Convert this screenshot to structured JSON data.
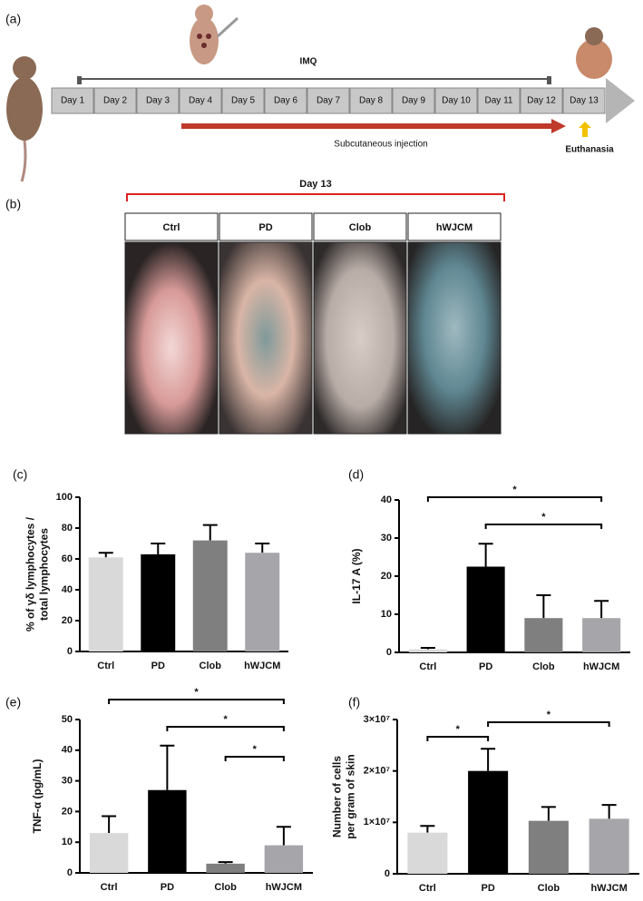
{
  "panels": {
    "a": "(a)",
    "b": "(b)",
    "c": "(c)",
    "d": "(d)",
    "e": "(e)",
    "f": "(f)"
  },
  "timeline": {
    "days": [
      "Day 1",
      "Day 2",
      "Day 3",
      "Day 4",
      "Day 5",
      "Day 6",
      "Day 7",
      "Day 8",
      "Day 9",
      "Day 10",
      "Day 11",
      "Day 12",
      "Day 13"
    ],
    "imq": "IMQ",
    "injection": "Subcutaneous injection",
    "euthanasia": "Euthanasia"
  },
  "photos": {
    "title": "Day 13",
    "groups": [
      "Ctrl",
      "PD",
      "Clob",
      "hWJCM"
    ]
  },
  "chart_data": [
    {
      "type": "bar",
      "y_label": [
        "% of γδ lymphocytes /",
        "total lymphocytes"
      ],
      "categories": [
        "Ctrl",
        "PD",
        "Clob",
        "hWJCM"
      ],
      "values": [
        61,
        63,
        72,
        64
      ],
      "errors": [
        3,
        7,
        10,
        6
      ],
      "colors": [
        "#d9d9d9",
        "#000000",
        "#7f7f7f",
        "#a6a6aa"
      ],
      "ylim": [
        0,
        100
      ],
      "yticks": [
        0,
        20,
        40,
        60,
        80,
        100
      ],
      "brackets": []
    },
    {
      "type": "bar",
      "y_label": "IL-17 A (%)",
      "categories": [
        "Ctrl",
        "PD",
        "Clob",
        "hWJCM"
      ],
      "values": [
        0.8,
        22.5,
        9,
        9
      ],
      "errors": [
        0.4,
        6,
        6,
        4.5
      ],
      "colors": [
        "#d9d9d9",
        "#000000",
        "#7f7f7f",
        "#a6a6aa"
      ],
      "ylim": [
        0,
        40
      ],
      "yticks": [
        0,
        10,
        20,
        30,
        40
      ],
      "brackets": [
        {
          "from": "Ctrl",
          "to": "hWJCM",
          "label": "*"
        },
        {
          "from": "PD",
          "to": "hWJCM",
          "label": "*"
        }
      ]
    },
    {
      "type": "bar",
      "y_label": "TNF-α (pg/mL)",
      "categories": [
        "Ctrl",
        "PD",
        "Clob",
        "hWJCM"
      ],
      "values": [
        13,
        27,
        3,
        9
      ],
      "errors": [
        5.5,
        14.5,
        0.5,
        6
      ],
      "colors": [
        "#d9d9d9",
        "#000000",
        "#7f7f7f",
        "#a6a6aa"
      ],
      "ylim": [
        0,
        50
      ],
      "yticks": [
        0,
        10,
        20,
        30,
        40,
        50
      ],
      "brackets": [
        {
          "from": "Ctrl",
          "to": "hWJCM",
          "label": "*"
        },
        {
          "from": "PD",
          "to": "hWJCM",
          "label": "*"
        },
        {
          "from": "Clob",
          "to": "hWJCM",
          "label": "*"
        }
      ]
    },
    {
      "type": "bar",
      "y_label": [
        "Number of cells",
        "per gram of skin"
      ],
      "categories": [
        "Ctrl",
        "PD",
        "Clob",
        "hWJCM"
      ],
      "values": [
        8000000,
        20000000,
        10300000,
        10700000
      ],
      "errors": [
        1300000,
        4300000,
        2700000,
        2700000
      ],
      "colors": [
        "#d9d9d9",
        "#000000",
        "#7f7f7f",
        "#a6a6aa"
      ],
      "ylim": [
        0,
        30000000
      ],
      "yticks": [
        0,
        {
          "value": 10000000,
          "label": "1×10⁷"
        },
        {
          "value": 20000000,
          "label": "2×10⁷"
        },
        {
          "value": 30000000,
          "label": "3×10⁷"
        }
      ],
      "brackets": [
        {
          "from": "Ctrl",
          "to": "PD",
          "label": "*"
        },
        {
          "from": "PD",
          "to": "hWJCM",
          "label": "*"
        }
      ]
    }
  ]
}
